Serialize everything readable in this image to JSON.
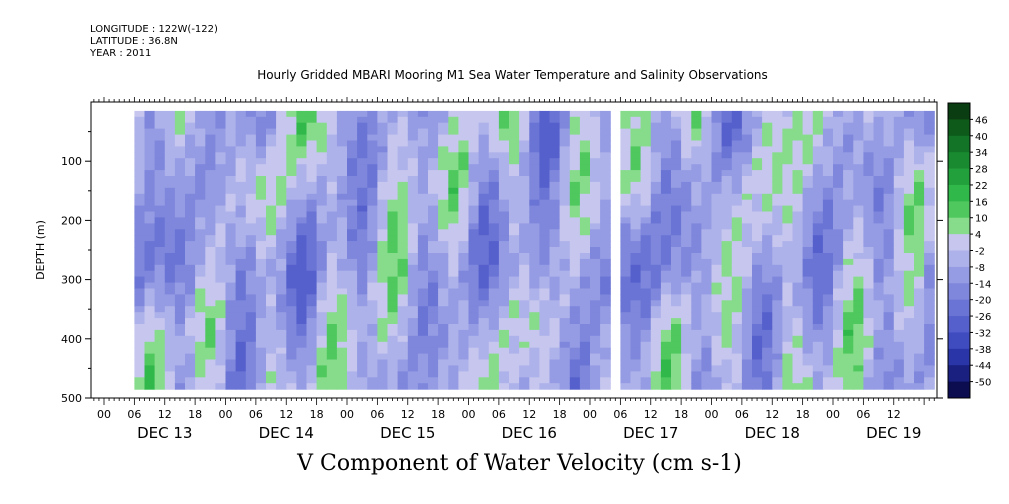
{
  "header": {
    "longitude": "LONGITUDE : 122W(-122)",
    "latitude": "LATITUDE : 36.8N",
    "year": "YEAR : 2011"
  },
  "chart_data": {
    "type": "heatmap",
    "title": "Hourly Gridded MBARI Mooring M1 Sea Water Temperature and Salinity Observations",
    "xlabel": "V Component of Water Velocity (cm s-1)",
    "ylabel": "DEPTH (m)",
    "ylim": [
      500,
      0
    ],
    "y_ticks": [
      100,
      200,
      300,
      400,
      500
    ],
    "x_hour_ticks": [
      "00",
      "06",
      "12",
      "18",
      "00",
      "06",
      "12",
      "18",
      "00",
      "06",
      "12",
      "18",
      "00",
      "06",
      "12",
      "18",
      "00",
      "06",
      "12",
      "18",
      "00",
      "06",
      "12",
      "18",
      "00",
      "06",
      "12"
    ],
    "x_day_labels": [
      "DEC 13",
      "DEC 14",
      "DEC 15",
      "DEC 16",
      "DEC 17",
      "DEC 18",
      "DEC 19"
    ],
    "data_gap_hours": [
      99,
      101
    ],
    "colorbar": {
      "labels": [
        "46",
        "40",
        "34",
        "28",
        "22",
        "16",
        "10",
        "4",
        "-2",
        "-8",
        "-14",
        "-20",
        "-26",
        "-32",
        "-38",
        "-44",
        "-50"
      ],
      "colors": [
        "#0a3d12",
        "#0e5a1a",
        "#137326",
        "#198a30",
        "#22a03c",
        "#30b84a",
        "#4fc85e",
        "#86dc8a",
        "#c6c6ee",
        "#aeb2ea",
        "#959ce4",
        "#7f87dc",
        "#6a74d4",
        "#5560cc",
        "#3e4cc0",
        "#2a36a8",
        "#1a2080",
        "#0c0c50"
      ]
    },
    "value_range": [
      -50,
      46
    ]
  }
}
